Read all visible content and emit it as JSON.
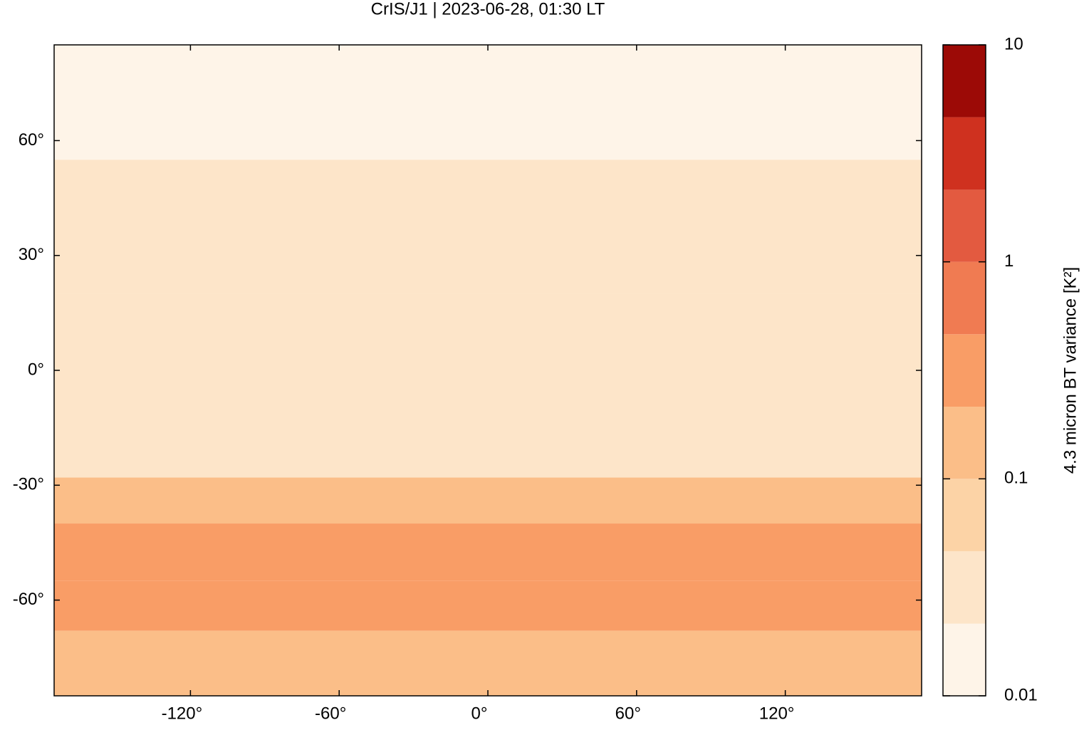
{
  "chart_data": {
    "type": "heatmap",
    "title": "CrIS/J1 | 2023-06-28, 01:30 LT",
    "xlim": [
      -175,
      175
    ],
    "ylim": [
      -85,
      85
    ],
    "xticks": [
      {
        "value": -120,
        "label": "-120°"
      },
      {
        "value": -60,
        "label": "-60°"
      },
      {
        "value": 0,
        "label": "0°"
      },
      {
        "value": 60,
        "label": "60°"
      },
      {
        "value": 120,
        "label": "120°"
      }
    ],
    "yticks": [
      {
        "value": 60,
        "label": "60°"
      },
      {
        "value": 30,
        "label": "30°"
      },
      {
        "value": 0,
        "label": "0°"
      },
      {
        "value": -30,
        "label": "-30°"
      },
      {
        "value": -60,
        "label": "-60°"
      }
    ],
    "lat_edges": [
      85,
      55,
      20,
      -28,
      -40,
      -55,
      -68,
      -85
    ],
    "values": [
      0.012,
      0.03,
      0.025,
      0.15,
      0.35,
      0.3,
      0.12
    ],
    "colorbar": {
      "label": "4.3 micron BT variance [K²]",
      "log": true,
      "lim": [
        0.01,
        10
      ],
      "ticks": [
        0.01,
        0.1,
        1,
        10
      ],
      "levels": [
        0.01,
        0.0215,
        0.0464,
        0.1,
        0.215,
        0.464,
        1,
        2.15,
        4.64,
        10
      ],
      "colors": [
        "#fef4e8",
        "#fde5c9",
        "#fcd3a6",
        "#fbbe88",
        "#f99d66",
        "#f07b52",
        "#e35a40",
        "#cf311f",
        "#9c0a06"
      ]
    }
  }
}
